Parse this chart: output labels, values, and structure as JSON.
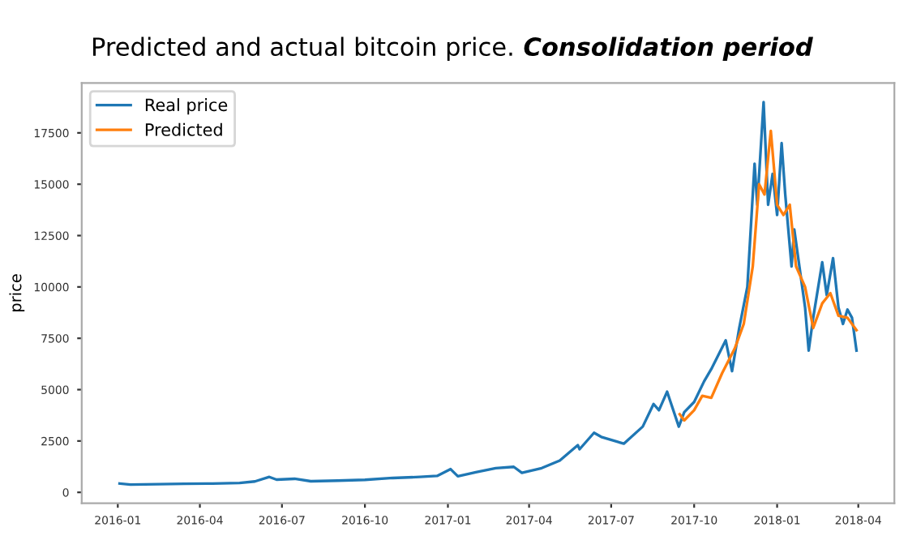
{
  "chart_data": {
    "type": "line",
    "title": "Predicted and actual bitcoin price.",
    "subtitle": "Consolidation period",
    "ylabel": "price",
    "xlim": [
      "2015-11-22",
      "2018-05-11"
    ],
    "ylim": [
      -530,
      19930
    ],
    "xticks": [
      "2016-01",
      "2016-04",
      "2016-07",
      "2016-10",
      "2017-01",
      "2017-04",
      "2017-07",
      "2017-10",
      "2018-01",
      "2018-04"
    ],
    "yticks": [
      0,
      2500,
      5000,
      7500,
      10000,
      12500,
      15000,
      17500
    ],
    "grid": false,
    "legend": "top left",
    "series": [
      {
        "name": "Real price",
        "color": "#1f77b4",
        "x": [
          "2016-01-03",
          "2016-01-15",
          "2016-02-15",
          "2016-03-15",
          "2016-04-15",
          "2016-05-15",
          "2016-06-01",
          "2016-06-17",
          "2016-06-25",
          "2016-07-15",
          "2016-08-02",
          "2016-09-01",
          "2016-10-01",
          "2016-11-01",
          "2016-12-01",
          "2016-12-20",
          "2017-01-04",
          "2017-01-12",
          "2017-02-01",
          "2017-02-23",
          "2017-03-15",
          "2017-03-24",
          "2017-04-15",
          "2017-05-05",
          "2017-05-25",
          "2017-05-27",
          "2017-06-12",
          "2017-06-20",
          "2017-07-15",
          "2017-08-05",
          "2017-08-17",
          "2017-08-23",
          "2017-09-01",
          "2017-09-14",
          "2017-09-20",
          "2017-10-01",
          "2017-10-12",
          "2017-10-20",
          "2017-11-05",
          "2017-11-12",
          "2017-11-20",
          "2017-11-29",
          "2017-12-07",
          "2017-12-10",
          "2017-12-17",
          "2017-12-22",
          "2017-12-27",
          "2018-01-01",
          "2018-01-06",
          "2018-01-10",
          "2018-01-17",
          "2018-01-20",
          "2018-02-01",
          "2018-02-05",
          "2018-02-10",
          "2018-02-20",
          "2018-02-25",
          "2018-03-04",
          "2018-03-10",
          "2018-03-15",
          "2018-03-20",
          "2018-03-25",
          "2018-03-30"
        ],
        "values": [
          430,
          380,
          400,
          415,
          430,
          455,
          530,
          750,
          620,
          660,
          540,
          570,
          610,
          700,
          750,
          800,
          1130,
          780,
          980,
          1180,
          1240,
          950,
          1180,
          1550,
          2300,
          2100,
          2900,
          2700,
          2370,
          3200,
          4300,
          4000,
          4900,
          3200,
          3900,
          4400,
          5400,
          6000,
          7400,
          5900,
          8000,
          10000,
          16000,
          14000,
          19000,
          14000,
          15500,
          13500,
          17000,
          14500,
          11000,
          12800,
          9000,
          6900,
          8500,
          11200,
          9600,
          11400,
          9000,
          8200,
          8900,
          8500,
          6900
        ]
      },
      {
        "name": "Predicted",
        "color": "#ff7f0e",
        "x": [
          "2017-09-15",
          "2017-09-20",
          "2017-10-01",
          "2017-10-10",
          "2017-10-20",
          "2017-11-01",
          "2017-11-15",
          "2017-11-25",
          "2017-12-05",
          "2017-12-12",
          "2017-12-18",
          "2017-12-25",
          "2018-01-01",
          "2018-01-08",
          "2018-01-15",
          "2018-01-22",
          "2018-02-01",
          "2018-02-10",
          "2018-02-20",
          "2018-03-01",
          "2018-03-10",
          "2018-03-20",
          "2018-03-30"
        ],
        "values": [
          3800,
          3500,
          4000,
          4700,
          4600,
          5800,
          7000,
          8200,
          11000,
          15000,
          14500,
          17600,
          14000,
          13500,
          14000,
          11000,
          10000,
          8000,
          9200,
          9700,
          8600,
          8500,
          7900
        ]
      }
    ]
  }
}
